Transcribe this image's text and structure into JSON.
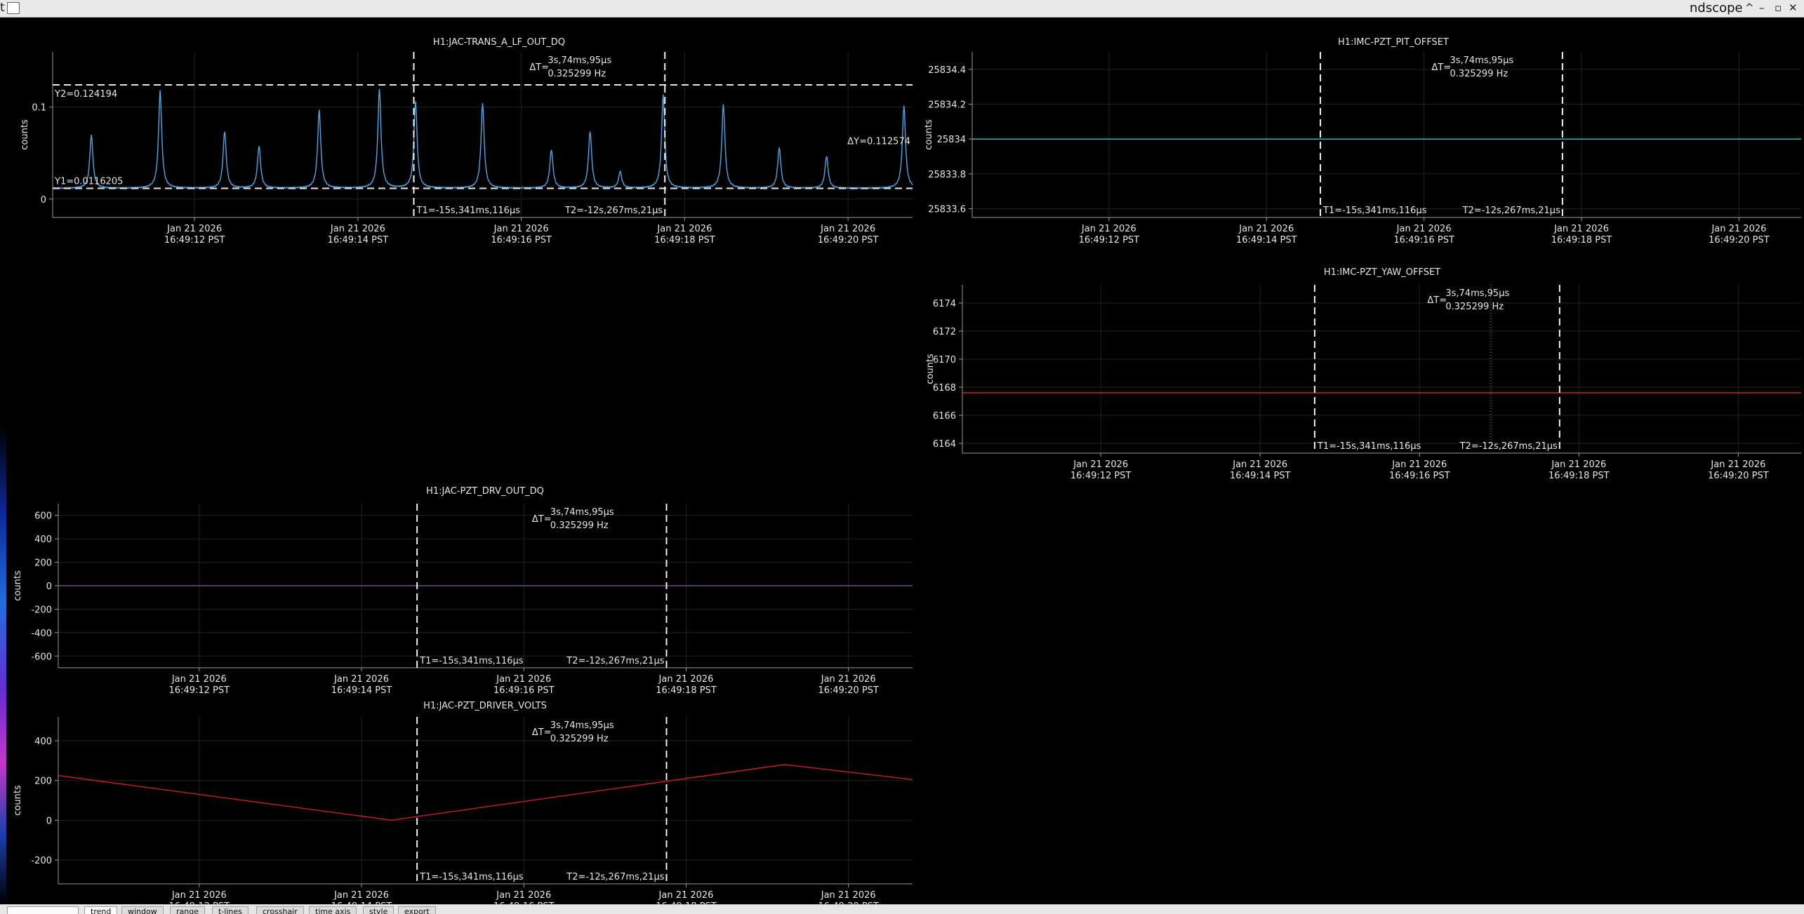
{
  "window": {
    "title": "ndscope",
    "left_glyph": "t",
    "controls": [
      "^",
      "–",
      "▫",
      "✕"
    ]
  },
  "axis_x": {
    "ticks": [
      {
        "date": "Jan 21 2026",
        "time": "16:49:12 PST"
      },
      {
        "date": "Jan 21 2026",
        "time": "16:49:14 PST"
      },
      {
        "date": "Jan 21 2026",
        "time": "16:49:16 PST"
      },
      {
        "date": "Jan 21 2026",
        "time": "16:49:18 PST"
      },
      {
        "date": "Jan 21 2026",
        "time": "16:49:20 PST"
      }
    ]
  },
  "cursors": {
    "delta_label": "ΔT=",
    "delta_value": "3s,74ms,95µs",
    "delta_freq": "0.325299 Hz",
    "t1_label": "T1=-15s,341ms,116µs",
    "t2_label": "T2=-12s,267ms,21µs"
  },
  "plots": [
    {
      "id": "trans",
      "title": "H1:JAC-TRANS_A_LF_OUT_DQ",
      "ylabel": "counts",
      "yticks": [
        "0",
        "0.1"
      ],
      "ylim": [
        -0.02,
        0.16
      ],
      "color": "#4aa8e8",
      "y1_label": "Y1=0.0116205",
      "y2_label": "Y2=0.124194",
      "dy_label": "ΔY=0.112574",
      "y1": 0.0116205,
      "y2": 0.124194
    },
    {
      "id": "pit",
      "title": "H1:IMC-PZT_PIT_OFFSET",
      "ylabel": "counts",
      "yticks": [
        "25833.6",
        "25833.8",
        "25834",
        "25834.2",
        "25834.4"
      ],
      "ylim": [
        25833.55,
        25834.5
      ],
      "color": "#2fb6b0",
      "value": 25834
    },
    {
      "id": "yaw",
      "title": "H1:IMC-PZT_YAW_OFFSET",
      "ylabel": "counts",
      "yticks": [
        "6164",
        "6166",
        "6168",
        "6170",
        "6172",
        "6174"
      ],
      "ylim": [
        6163.3,
        6175.3
      ],
      "color": "#c8262c",
      "value": 6167.6
    },
    {
      "id": "drv",
      "title": "H1:JAC-PZT_DRV_OUT_DQ",
      "ylabel": "counts",
      "yticks": [
        "-600",
        "-400",
        "-200",
        "0",
        "200",
        "400",
        "600"
      ],
      "ylim": [
        -700,
        700
      ],
      "color": "#6a4a86",
      "value": 0
    },
    {
      "id": "volts",
      "title": "H1:JAC-PZT_DRIVER_VOLTS",
      "ylabel": "counts",
      "yticks": [
        "-200",
        "0",
        "200",
        "400"
      ],
      "ylim": [
        -320,
        520
      ],
      "color": "#c81e22",
      "x": [
        0,
        0.39,
        0.85,
        1.0
      ],
      "y": [
        225,
        0,
        280,
        205
      ]
    }
  ],
  "tabs": [
    {
      "label": "trend",
      "active": true
    },
    {
      "label": "window",
      "active": false
    },
    {
      "label": "range",
      "active": false
    },
    {
      "label": "t-lines",
      "active": false
    },
    {
      "label": "crosshair",
      "active": false
    },
    {
      "label": "time axis",
      "active": false
    },
    {
      "label": "style",
      "active": false
    },
    {
      "label": "export",
      "active": false
    }
  ]
}
